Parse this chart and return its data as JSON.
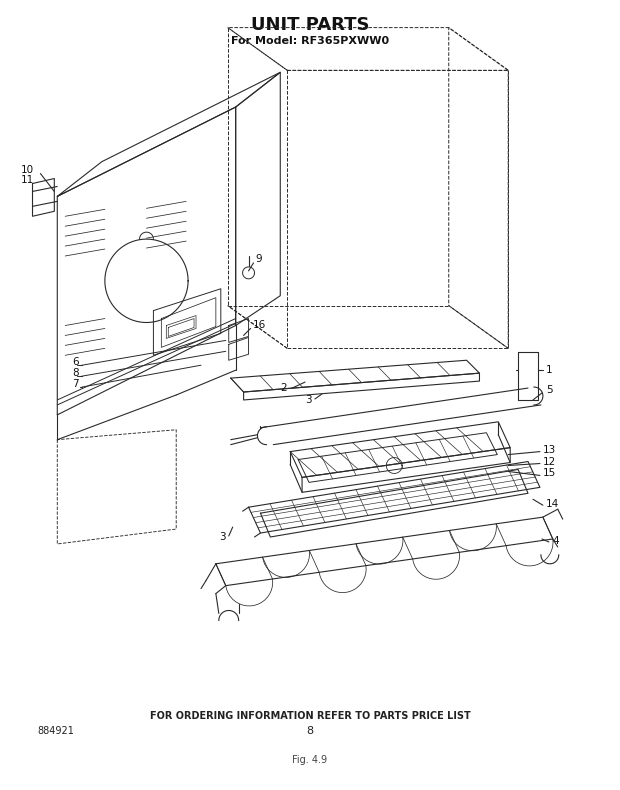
{
  "title": "UNIT PARTS",
  "subtitle": "For Model: RF365PXWW0",
  "footer_text": "FOR ORDERING INFORMATION REFER TO PARTS PRICE LIST",
  "bottom_left": "884921",
  "bottom_center": "8",
  "bottom_note": "Fig. 4.9",
  "bg_color": "#ffffff",
  "line_color": "#2a2a2a",
  "title_fontsize": 13,
  "subtitle_fontsize": 8,
  "footer_fontsize": 7
}
